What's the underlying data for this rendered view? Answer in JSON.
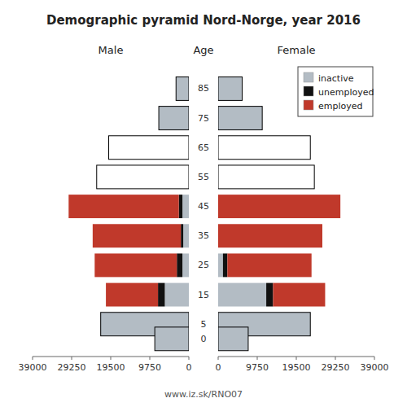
{
  "chart_data": [
    {
      "type": "bar",
      "orientation": "horizontal",
      "stacked": true,
      "title": "Demographic pyramid Nord-Norge, year 2016",
      "xlabel": "Male",
      "ylabel": "Age",
      "footer": "www.iz.sk/RNO07",
      "y": [
        85,
        75,
        65,
        55,
        45,
        35,
        25,
        15,
        5,
        0
      ],
      "ylim": [
        -6,
        93
      ],
      "yticks": [
        85,
        75,
        65,
        55,
        45,
        35,
        25,
        15,
        5,
        0
      ],
      "xlim": [
        39000,
        0
      ],
      "xticks": [
        39000,
        29250,
        19500,
        9750,
        0
      ],
      "series": [
        {
          "color": "#b3bcc4",
          "values": [
            3200,
            7500,
            0,
            0,
            1600,
            1400,
            1600,
            6000,
            22000,
            8500
          ]
        },
        {
          "color": "#111111",
          "values": [
            0,
            0,
            0,
            0,
            900,
            600,
            1400,
            1700,
            0,
            0
          ]
        },
        {
          "color": "#c0392b",
          "values": [
            0,
            0,
            0,
            0,
            27500,
            22000,
            20500,
            13000,
            0,
            0
          ]
        },
        {
          "type": "outline",
          "color": "#000000",
          "values": [
            3200,
            7500,
            20000,
            23000,
            null,
            null,
            null,
            null,
            22000,
            8500
          ]
        }
      ]
    },
    {
      "type": "bar",
      "orientation": "horizontal",
      "stacked": true,
      "xlabel": "Female",
      "legend": "upper right",
      "y": [
        85,
        75,
        65,
        55,
        45,
        35,
        25,
        15,
        5,
        0
      ],
      "ylim": [
        -6,
        93
      ],
      "xlim": [
        0,
        39000
      ],
      "xticks": [
        0,
        9750,
        19500,
        29250,
        39000
      ],
      "series": [
        {
          "name": "inactive",
          "color": "#b3bcc4",
          "values": [
            6000,
            11000,
            0,
            0,
            0,
            0,
            1200,
            12000,
            23000,
            7500
          ]
        },
        {
          "name": "unemployed",
          "color": "#111111",
          "values": [
            0,
            0,
            0,
            0,
            0,
            0,
            1100,
            1700,
            0,
            0
          ]
        },
        {
          "name": "employed",
          "color": "#c0392b",
          "values": [
            0,
            0,
            0,
            0,
            30500,
            26000,
            21000,
            13000,
            0,
            0
          ]
        },
        {
          "type": "outline",
          "color": "#000000",
          "values": [
            6000,
            11000,
            23000,
            24000,
            null,
            null,
            null,
            null,
            23000,
            7500
          ]
        }
      ]
    }
  ]
}
